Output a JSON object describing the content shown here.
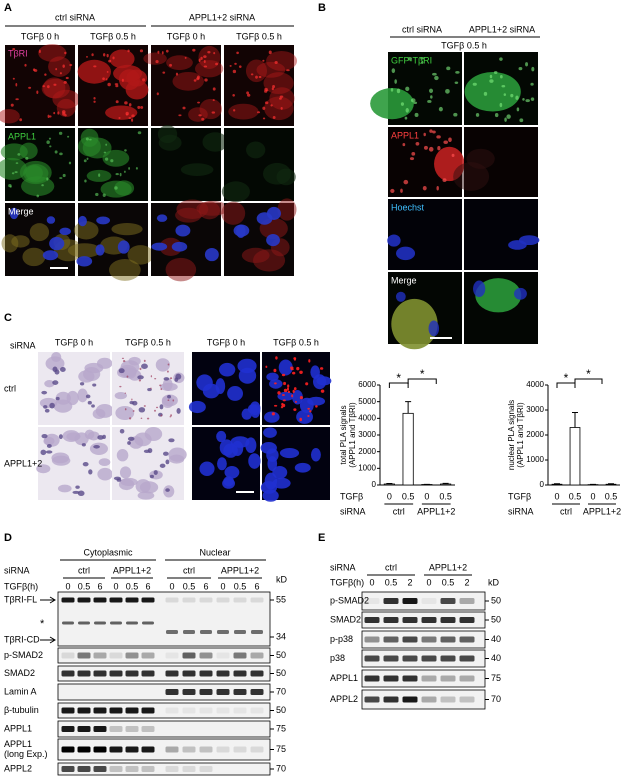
{
  "panels": {
    "A": {
      "label": "A",
      "groups": [
        "ctrl siRNA",
        "APPL1+2 siRNA"
      ],
      "columns": [
        "TGFβ 0 h",
        "TGFβ 0.5 h",
        "TGFβ 0 h",
        "TGFβ 0.5 h"
      ],
      "rows": [
        "TβRI",
        "APPL1",
        "Merge"
      ]
    },
    "B": {
      "label": "B",
      "groups": [
        "ctrl siRNA",
        "APPL1+2 siRNA"
      ],
      "treatment": "TGFβ 0.5 h",
      "rows": [
        "GFP-TβRI",
        "APPL1",
        "Hoechst",
        "Merge"
      ]
    },
    "C": {
      "label": "C",
      "row_header": "siRNA",
      "columns": [
        "TGFβ 0 h",
        "TGFβ 0.5 h",
        "TGFβ 0 h",
        "TGFβ 0.5 h"
      ],
      "rows": [
        "ctrl",
        "APPL1+2"
      ]
    },
    "D": {
      "label": "D",
      "siRNA_label": "siRNA",
      "fractions": [
        "Cytoplasmic",
        "Nuclear"
      ],
      "groups": [
        "ctrl",
        "APPL1+2",
        "ctrl",
        "APPL1+2"
      ],
      "time_label": "TGFβ(h)",
      "lanes": [
        "0",
        "0.5",
        "6",
        "0",
        "0.5",
        "6",
        "0",
        "0.5",
        "6",
        "0",
        "0.5",
        "6"
      ],
      "kd_label": "kD",
      "big_blot": {
        "labels": [
          "TβRI-FL",
          "TβRI-CD"
        ],
        "star": "*",
        "markers": [
          55,
          34
        ]
      },
      "blots": [
        {
          "lines": [
            "p-SMAD2"
          ],
          "marker": 50
        },
        {
          "lines": [
            "SMAD2"
          ],
          "marker": 50
        },
        {
          "lines": [
            "Lamin A"
          ],
          "marker": 70
        },
        {
          "lines": [
            "β-tubulin"
          ],
          "marker": 50
        },
        {
          "lines": [
            "APPL1"
          ],
          "marker": 75
        },
        {
          "lines": [
            "APPL1",
            "(long Exp.)"
          ],
          "marker": 75
        },
        {
          "lines": [
            "APPL2"
          ],
          "marker": 70
        }
      ]
    },
    "E": {
      "label": "E",
      "siRNA_label": "siRNA",
      "groups": [
        "ctrl",
        "APPL1+2"
      ],
      "time_label": "TGFβ(h)",
      "lanes": [
        "0",
        "0.5",
        "2",
        "0",
        "0.5",
        "2"
      ],
      "kd_label": "kD",
      "blots": [
        {
          "lines": [
            "p-SMAD2"
          ],
          "marker": 50
        },
        {
          "lines": [
            "SMAD2"
          ],
          "marker": 50
        },
        {
          "lines": [
            "p-p38"
          ],
          "marker": 40
        },
        {
          "lines": [
            "p38"
          ],
          "marker": 40
        },
        {
          "lines": [
            "APPL1"
          ],
          "marker": 75
        },
        {
          "lines": [
            "APPL2"
          ],
          "marker": 70
        }
      ]
    }
  },
  "chart_data": [
    {
      "type": "bar",
      "ylabel": [
        "total PLA signals",
        "(APPL1 and TβRI)"
      ],
      "categories": [
        "0",
        "0.5",
        "0",
        "0.5"
      ],
      "groups": [
        "ctrl",
        "APPL1+2"
      ],
      "row_labels": [
        "TGFβ",
        "siRNA"
      ],
      "values": [
        60,
        4300,
        30,
        60
      ],
      "errors": [
        30,
        700,
        10,
        40
      ],
      "color": "#ffffff",
      "ylim": [
        0,
        6000
      ],
      "yticks": [
        0,
        1000,
        2000,
        3000,
        4000,
        5000,
        6000
      ],
      "annotations": [
        "*",
        "*"
      ]
    },
    {
      "type": "bar",
      "ylabel": [
        "nuclear PLA signals",
        "(APPL1 and TβRI)"
      ],
      "categories": [
        "0",
        "0.5",
        "0",
        "0.5"
      ],
      "groups": [
        "ctrl",
        "APPL1+2"
      ],
      "row_labels": [
        "TGFβ",
        "siRNA"
      ],
      "values": [
        30,
        2300,
        15,
        30
      ],
      "errors": [
        20,
        600,
        10,
        20
      ],
      "color": "#ffffff",
      "ylim": [
        0,
        4000
      ],
      "yticks": [
        0,
        1000,
        2000,
        3000,
        4000
      ],
      "annotations": [
        "*",
        "*"
      ]
    }
  ]
}
